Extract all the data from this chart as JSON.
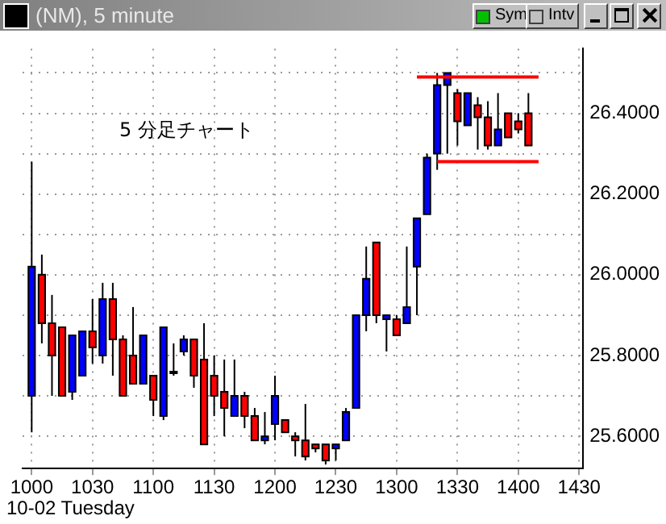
{
  "chart_data": {
    "type": "candlestick",
    "title": "(NM), 5 minute",
    "annotations": [
      "5 分足チャート",
      "10-02 Tuesday",
      "Sym",
      "Intv"
    ],
    "categories": [
      "1000",
      null,
      null,
      null,
      null,
      null,
      "1030",
      null,
      null,
      null,
      null,
      null,
      "1100",
      null,
      null,
      null,
      null,
      null,
      "1130",
      null,
      null,
      null,
      null,
      null,
      "1200",
      null,
      null,
      null,
      null,
      null,
      "1230",
      null,
      null,
      null,
      null,
      null,
      "1300",
      null,
      null,
      null,
      null,
      null,
      "1330",
      null,
      null,
      null,
      null,
      null,
      "1400",
      null,
      null,
      null,
      null,
      null,
      "1430"
    ],
    "ohlc": [
      [
        25.7,
        26.28,
        25.61,
        26.02
      ],
      [
        26.0,
        26.05,
        25.83,
        25.88
      ],
      [
        25.88,
        25.95,
        25.7,
        25.8
      ],
      [
        25.87,
        25.87,
        25.7,
        25.7
      ],
      [
        25.71,
        25.85,
        25.69,
        25.85
      ],
      [
        25.75,
        25.86,
        25.75,
        25.86
      ],
      [
        25.86,
        25.94,
        25.78,
        25.82
      ],
      [
        25.8,
        25.98,
        25.78,
        25.94
      ],
      [
        25.94,
        25.98,
        25.75,
        25.84
      ],
      [
        25.84,
        25.85,
        25.7,
        25.7
      ],
      [
        25.8,
        25.92,
        25.73,
        25.73
      ],
      [
        25.73,
        25.85,
        25.73,
        25.85
      ],
      [
        25.75,
        25.75,
        25.65,
        25.69
      ],
      [
        25.65,
        25.87,
        25.64,
        25.87
      ],
      [
        25.76,
        25.83,
        25.75,
        25.76
      ],
      [
        25.81,
        25.85,
        25.8,
        25.84
      ],
      [
        25.84,
        25.84,
        25.72,
        25.75
      ],
      [
        25.79,
        25.88,
        25.58,
        25.58
      ],
      [
        25.75,
        25.8,
        25.65,
        25.7
      ],
      [
        25.71,
        25.79,
        25.6,
        25.67
      ],
      [
        25.65,
        25.79,
        25.65,
        25.7
      ],
      [
        25.7,
        25.71,
        25.62,
        25.65
      ],
      [
        25.65,
        25.67,
        25.59,
        25.59
      ],
      [
        25.59,
        25.66,
        25.58,
        25.6
      ],
      [
        25.63,
        25.75,
        25.59,
        25.7
      ],
      [
        25.64,
        25.64,
        25.61,
        25.61
      ],
      [
        25.6,
        25.61,
        25.55,
        25.59
      ],
      [
        25.59,
        25.68,
        25.54,
        25.55
      ],
      [
        25.58,
        25.58,
        25.56,
        25.57
      ],
      [
        25.58,
        25.58,
        25.53,
        25.54
      ],
      [
        25.57,
        25.58,
        25.54,
        25.58
      ],
      [
        25.59,
        25.67,
        25.59,
        25.66
      ],
      [
        25.67,
        25.9,
        25.67,
        25.9
      ],
      [
        25.9,
        26.07,
        25.86,
        25.99
      ],
      [
        26.08,
        26.08,
        25.88,
        25.9
      ],
      [
        25.89,
        25.9,
        25.81,
        25.9
      ],
      [
        25.89,
        25.9,
        25.85,
        25.85
      ],
      [
        25.88,
        26.07,
        25.88,
        25.92
      ],
      [
        26.02,
        26.14,
        25.9,
        26.14
      ],
      [
        26.15,
        26.3,
        26.15,
        26.29
      ],
      [
        26.3,
        26.5,
        26.26,
        26.47
      ],
      [
        26.47,
        26.5,
        26.3,
        26.5
      ],
      [
        26.45,
        26.46,
        26.32,
        26.38
      ],
      [
        26.37,
        26.45,
        26.37,
        26.45
      ],
      [
        26.42,
        26.44,
        26.31,
        26.39
      ],
      [
        26.39,
        26.43,
        26.31,
        26.32
      ],
      [
        26.32,
        26.45,
        26.32,
        26.36
      ],
      [
        26.4,
        26.4,
        26.34,
        26.34
      ],
      [
        26.38,
        26.4,
        26.35,
        26.36
      ],
      [
        26.4,
        26.45,
        26.32,
        26.32
      ],
      null,
      null,
      null,
      null,
      null
    ],
    "colors": [
      "#0000ff",
      "#ff0000",
      "#ff0000",
      "#ff0000",
      "#0000ff",
      "#0000ff",
      "#ff0000",
      "#0000ff",
      "#ff0000",
      "#ff0000",
      "#ff0000",
      "#0000ff",
      "#ff0000",
      "#0000ff",
      "#ff0000",
      "#0000ff",
      "#ff0000",
      "#ff0000",
      "#ff0000",
      "#ff0000",
      "#0000ff",
      "#ff0000",
      "#ff0000",
      "#0000ff",
      "#0000ff",
      "#ff0000",
      "#ff0000",
      "#ff0000",
      "#ff0000",
      "#ff0000",
      "#0000ff",
      "#0000ff",
      "#0000ff",
      "#0000ff",
      "#ff0000",
      "#0000ff",
      "#ff0000",
      "#0000ff",
      "#0000ff",
      "#0000ff",
      "#0000ff",
      "#0000ff",
      "#ff0000",
      "#0000ff",
      "#ff0000",
      "#ff0000",
      "#0000ff",
      "#ff0000",
      "#ff0000",
      "#ff0000",
      null,
      null,
      null,
      null,
      null
    ],
    "series": [
      {
        "type": "line",
        "color": "#ff0000",
        "values": [
          null,
          null,
          null,
          null,
          null,
          null,
          null,
          null,
          null,
          null,
          null,
          null,
          null,
          null,
          null,
          null,
          null,
          null,
          null,
          null,
          null,
          null,
          null,
          null,
          null,
          null,
          null,
          null,
          null,
          null,
          null,
          null,
          null,
          null,
          null,
          null,
          null,
          null,
          26.49,
          26.49,
          26.49,
          26.49,
          26.49,
          26.49,
          26.49,
          26.49,
          26.49,
          26.49,
          26.49,
          26.49,
          26.49,
          null,
          null,
          null,
          null
        ]
      },
      {
        "type": "line",
        "color": "#ff0000",
        "values": [
          null,
          null,
          null,
          null,
          null,
          null,
          null,
          null,
          null,
          null,
          null,
          null,
          null,
          null,
          null,
          null,
          null,
          null,
          null,
          null,
          null,
          null,
          null,
          null,
          null,
          null,
          null,
          null,
          null,
          null,
          null,
          null,
          null,
          null,
          null,
          null,
          null,
          null,
          null,
          null,
          26.28,
          26.28,
          26.28,
          26.28,
          26.28,
          26.28,
          26.28,
          26.28,
          26.28,
          26.28,
          26.28,
          null,
          null,
          null,
          null
        ]
      }
    ],
    "ylim": [
      25.52,
      26.56
    ],
    "yticks": [
      {
        "value": 25.6,
        "label": "25.6000"
      },
      {
        "value": 25.7,
        "label": null
      },
      {
        "value": 25.8,
        "label": "25.8000"
      },
      {
        "value": 25.9,
        "label": null
      },
      {
        "value": 26,
        "label": "26.0000"
      },
      {
        "value": 26.1,
        "label": null
      },
      {
        "value": 26.2,
        "label": "26.2000"
      },
      {
        "value": 26.3,
        "label": null
      },
      {
        "value": 26.4,
        "label": "26.4000"
      },
      {
        "value": 26.5,
        "label": null
      }
    ],
    "grid": true,
    "legend": false
  }
}
